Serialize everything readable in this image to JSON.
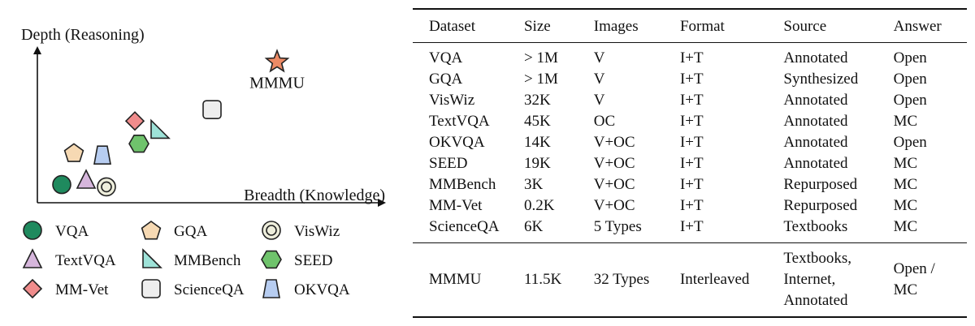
{
  "chart_data": {
    "type": "scatter",
    "xlabel": "Breadth (Knowledge)",
    "ylabel": "Depth (Reasoning)",
    "grid": false,
    "points": [
      {
        "name": "VQA",
        "marker": "circle",
        "color": "#1f8a5e",
        "x": 0.6,
        "y": 0.8
      },
      {
        "name": "GQA",
        "marker": "pentagon",
        "color": "#f6d9b3",
        "x": 0.9,
        "y": 2.2
      },
      {
        "name": "VisWiz",
        "marker": "double-circle",
        "color": "#eeeedc",
        "x": 1.7,
        "y": 0.7
      },
      {
        "name": "TextVQA",
        "marker": "triangle",
        "color": "#d6b6dc",
        "x": 1.2,
        "y": 1.0
      },
      {
        "name": "MMBench",
        "marker": "right-triangle",
        "color": "#9ee2d8",
        "x": 3.0,
        "y": 3.2
      },
      {
        "name": "SEED",
        "marker": "hexagon",
        "color": "#6fc36c",
        "x": 2.5,
        "y": 2.6
      },
      {
        "name": "MM-Vet",
        "marker": "diamond",
        "color": "#f08c8c",
        "x": 2.4,
        "y": 3.6
      },
      {
        "name": "ScienceQA",
        "marker": "rounded-square",
        "color": "#eeeeee",
        "x": 4.3,
        "y": 4.1
      },
      {
        "name": "OKVQA",
        "marker": "trapezoid",
        "color": "#b7cdf1",
        "x": 1.6,
        "y": 2.1
      },
      {
        "name": "MMMU",
        "marker": "star",
        "color": "#ec8a65",
        "x": 5.9,
        "y": 6.2,
        "label": "MMMU"
      }
    ],
    "legend": {
      "placement": "bottom",
      "rows": [
        [
          "VQA",
          "GQA",
          "VisWiz"
        ],
        [
          "TextVQA",
          "MMBench",
          "SEED"
        ],
        [
          "MM-Vet",
          "ScienceQA",
          "OKVQA"
        ]
      ]
    }
  },
  "table": {
    "headers": [
      "Dataset",
      "Size",
      "Images",
      "Format",
      "Source",
      "Answer"
    ],
    "rows": [
      [
        "VQA",
        "> 1M",
        "V",
        "I+T",
        "Annotated",
        "Open"
      ],
      [
        "GQA",
        "> 1M",
        "V",
        "I+T",
        "Synthesized",
        "Open"
      ],
      [
        "VisWiz",
        "32K",
        "V",
        "I+T",
        "Annotated",
        "Open"
      ],
      [
        "TextVQA",
        "45K",
        "OC",
        "I+T",
        "Annotated",
        "MC"
      ],
      [
        "OKVQA",
        "14K",
        "V+OC",
        "I+T",
        "Annotated",
        "Open"
      ],
      [
        "SEED",
        "19K",
        "V+OC",
        "I+T",
        "Annotated",
        "MC"
      ],
      [
        "MMBench",
        "3K",
        "V+OC",
        "I+T",
        "Repurposed",
        "MC"
      ],
      [
        "MM-Vet",
        "0.2K",
        "V+OC",
        "I+T",
        "Repurposed",
        "MC"
      ],
      [
        "ScienceQA",
        "6K",
        "5 Types",
        "I+T",
        "Textbooks",
        "MC"
      ]
    ],
    "final_row": [
      "MMMU",
      "11.5K",
      "32 Types",
      "Interleaved",
      "Textbooks,\nInternet,\nAnnotated",
      "Open /\nMC"
    ]
  }
}
